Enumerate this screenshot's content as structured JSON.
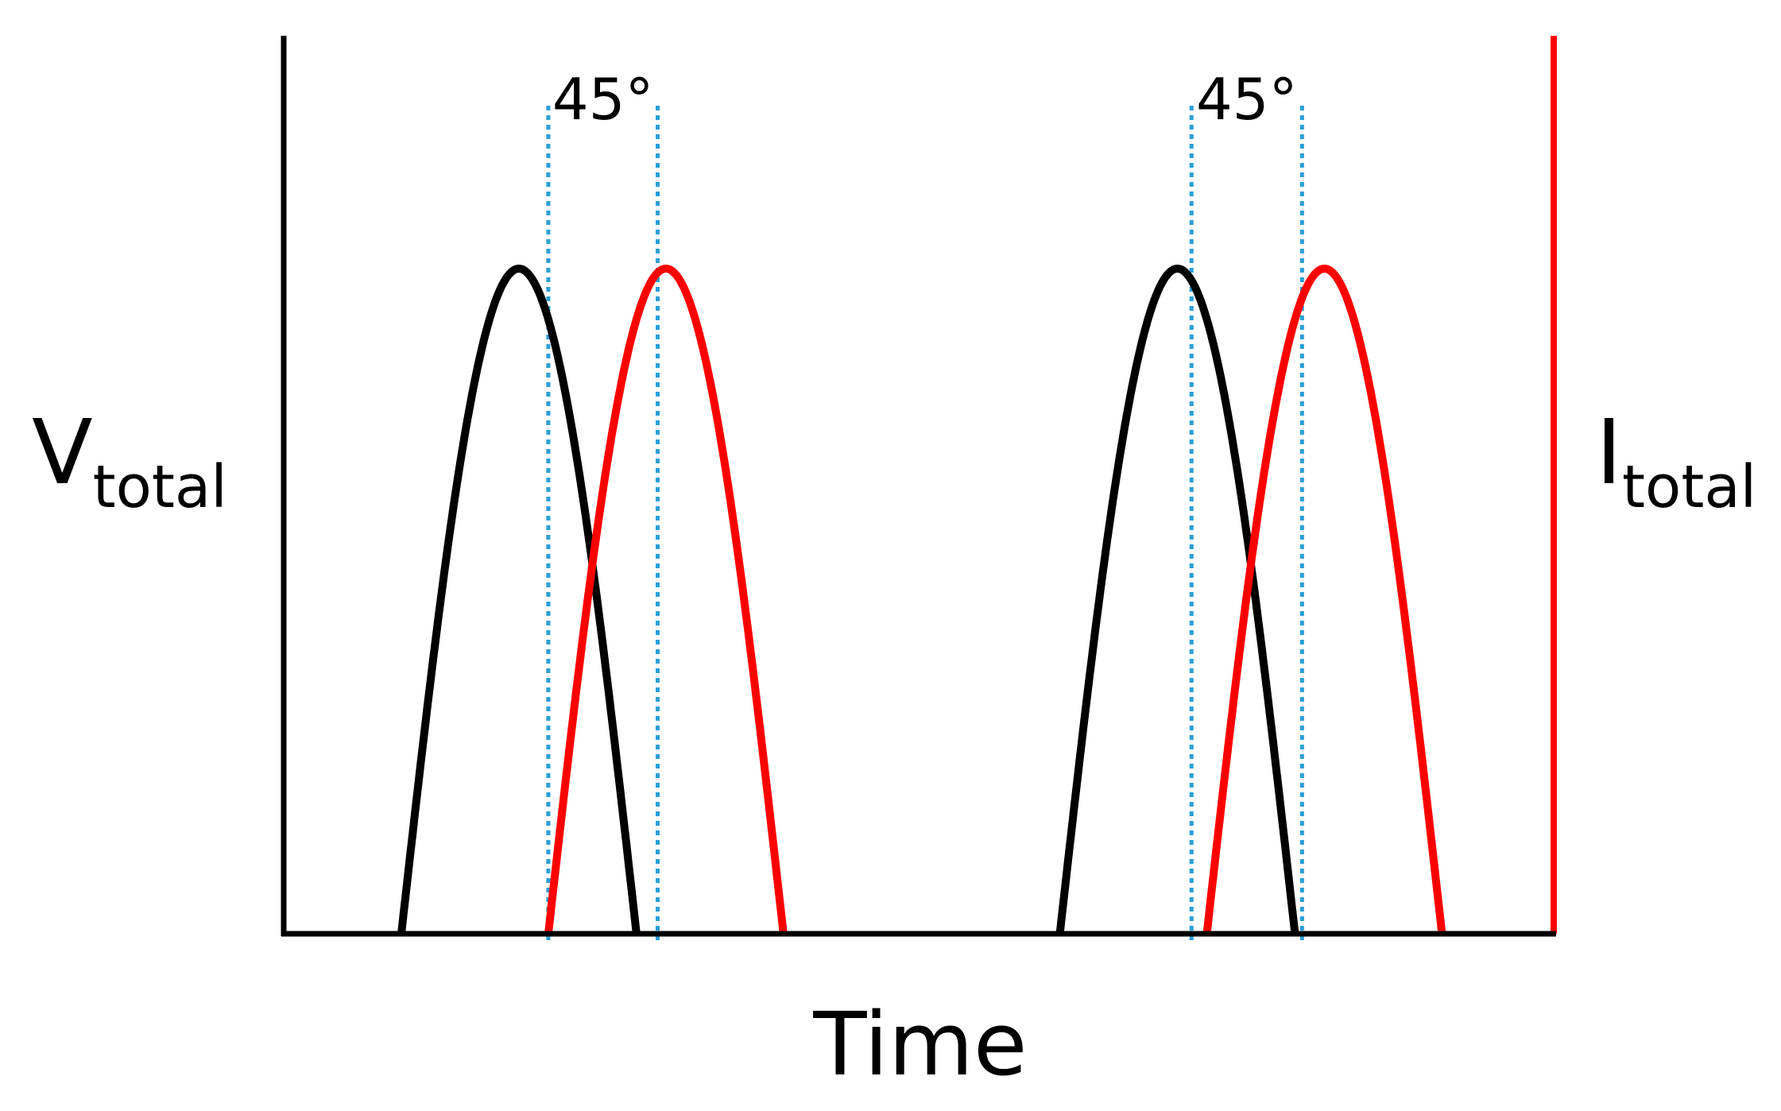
{
  "chart_data": {
    "type": "line",
    "title": "",
    "xlabel": "Time",
    "ylabel_left": {
      "main": "V",
      "sub": "total"
    },
    "ylabel_right": {
      "main": "I",
      "sub": "total"
    },
    "xlim": [
      0,
      1080
    ],
    "ylim": [
      0,
      1
    ],
    "grid": false,
    "legend": "none",
    "colors": {
      "voltage": "#000000",
      "current": "#ff0000",
      "marker": "#2a9fd6",
      "axis": "#000000"
    },
    "series": [
      {
        "role": "voltage",
        "pulses": [
          {
            "x_start": 100,
            "x_peak": 200,
            "x_end": 300,
            "peak": 1
          },
          {
            "x_start": 660,
            "x_peak": 760,
            "x_end": 860,
            "peak": 1
          }
        ]
      },
      {
        "role": "current",
        "pulses": [
          {
            "x_start": 225,
            "x_peak": 325,
            "x_end": 425,
            "peak": 1
          },
          {
            "x_start": 785,
            "x_peak": 885,
            "x_end": 985,
            "peak": 1
          }
        ]
      }
    ],
    "phase_markers": [
      {
        "x1": 225,
        "x2": 318,
        "label": "45°"
      },
      {
        "x1": 772,
        "x2": 866,
        "label": "45°"
      }
    ]
  }
}
